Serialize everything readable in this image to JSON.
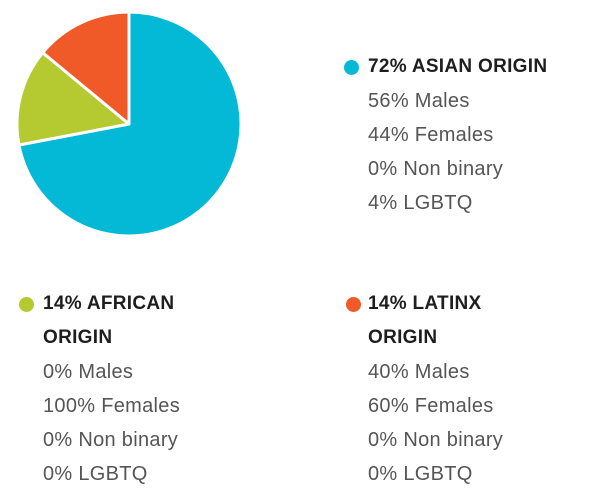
{
  "chart_data": {
    "type": "pie",
    "categories": [
      "ASIAN ORIGIN",
      "AFRICAN ORIGIN",
      "LATINX ORIGIN"
    ],
    "values": [
      72,
      14,
      14
    ],
    "value_labels": [
      "72%",
      "14%",
      "14%"
    ],
    "colors": [
      "#04b9d6",
      "#b5c930",
      "#f05a28"
    ],
    "breakdowns": [
      [
        "56% Males",
        "44% Females",
        "0% Non binary",
        "4% LGBTQ"
      ],
      [
        "0% Males",
        "100% Females",
        "0% Non binary",
        "0% LGBTQ"
      ],
      [
        "40% Males",
        "60% Females",
        "0% Non binary",
        "0% LGBTQ"
      ]
    ]
  }
}
